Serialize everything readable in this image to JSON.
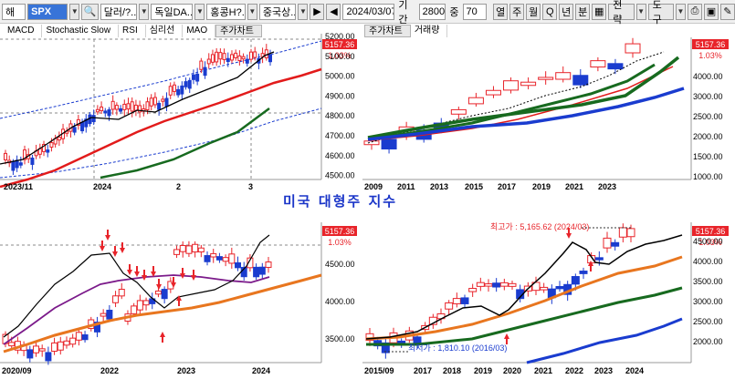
{
  "toolbar": {
    "mode": "해",
    "symbol": "SPX",
    "currency": "달러/?..",
    "market": "독일DA..",
    "market2": "홍콩H?..",
    "market3": "중국상..",
    "date": "2024/03/07",
    "period_label": "기간",
    "period_value": "2800",
    "count_label": "중",
    "count_value": "70",
    "period_buttons": [
      "열",
      "주",
      "월",
      "Q",
      "년",
      "분"
    ],
    "strategy_label": "전략",
    "tools_label": "도구"
  },
  "top_left": {
    "tabs": [
      "MACD",
      "Stochastic Slow",
      "RSI",
      "심리선",
      "MAO",
      "주가차트"
    ],
    "price_tag": "5157.36",
    "pct_tag": "1.03%",
    "y_ticks": [
      "5200.00",
      "5100.00",
      "5000.00",
      "4900.00",
      "4800.00",
      "4700.00",
      "4600.00",
      "4500.00"
    ],
    "x_ticks": [
      "2023/11",
      "2024",
      "2",
      "3"
    ]
  },
  "top_right": {
    "tabs": [
      "주가차트",
      "거래량"
    ],
    "price_tag": "5157.36",
    "pct_tag": "1.03%",
    "y_ticks": [
      "4000.00",
      "3000.00",
      "2500.00",
      "2000.00",
      "1500.00",
      "1000.00"
    ],
    "x_ticks": [
      "2009",
      "2011",
      "2013",
      "2015",
      "2017",
      "2019",
      "2021",
      "2023"
    ]
  },
  "center_title": "미국 대형주 지수",
  "bottom_left": {
    "price_tag": "5157.36",
    "pct_tag": "1.03%",
    "y_ticks": [
      "4500.00",
      "4000.00",
      "3500.00"
    ],
    "x_ticks": [
      "2020/09",
      "2022",
      "2023",
      "2024"
    ]
  },
  "bottom_right": {
    "price_tag": "5157.36",
    "pct_tag": "1.03%",
    "high_note": "최고가 : 5,165.62 (2024/03)",
    "low_note": "최저가 : 1,810.10 (2016/03)",
    "y_ticks": [
      "4500.00",
      "4000.00",
      "3500.00",
      "3000.00",
      "2500.00",
      "2000.00"
    ],
    "x_ticks": [
      "2015/09",
      "2017",
      "2018",
      "2019",
      "2020",
      "2021",
      "2022",
      "2023",
      "2024"
    ]
  },
  "colors": {
    "up": "#e8242a",
    "down": "#1a3ccf",
    "ma_short": "#e21b1b",
    "ma_mid": "#176a1f",
    "ma_long": "#1a3ccf",
    "tag_bg": "#e8242a",
    "title": "#1a35c8"
  }
}
